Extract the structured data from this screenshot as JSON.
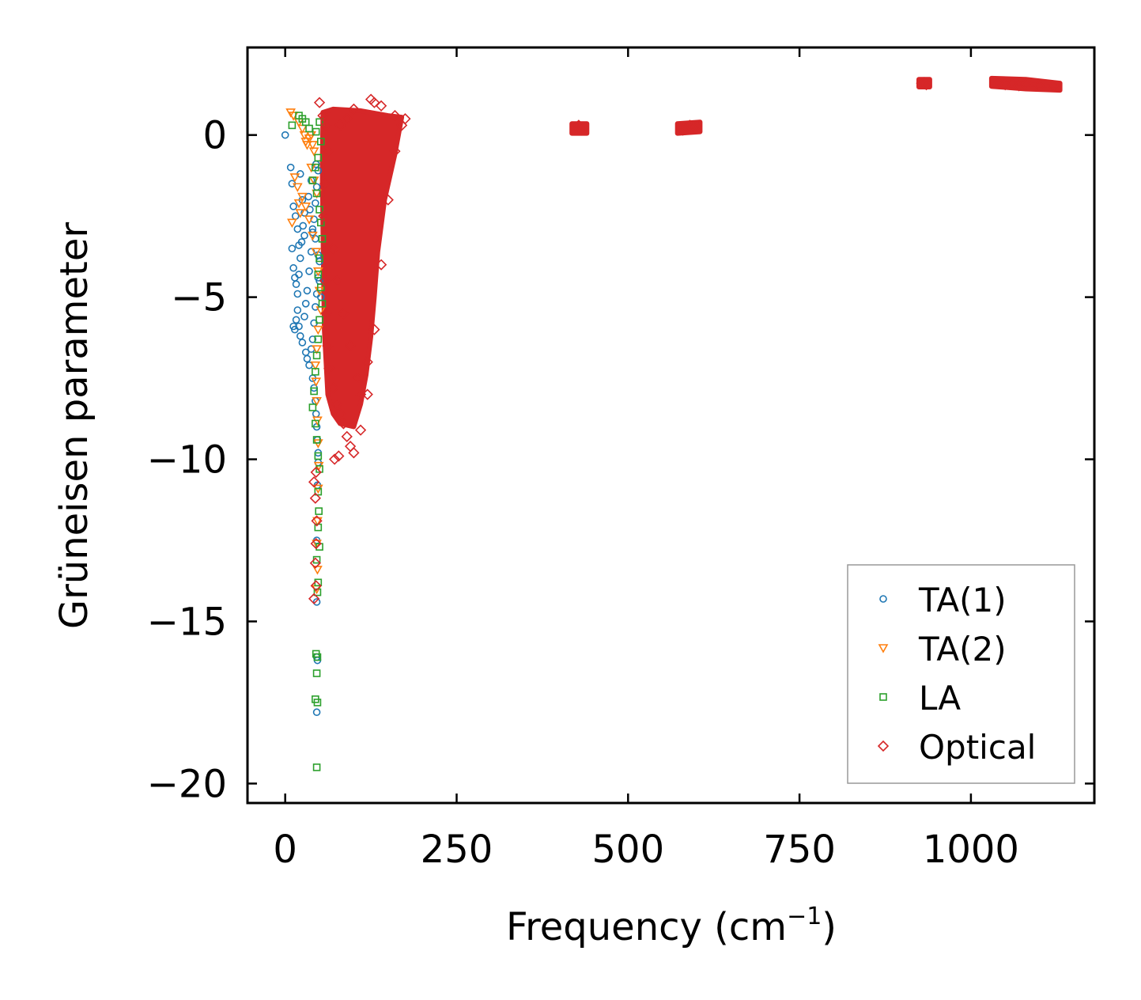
{
  "chart_data": {
    "type": "scatter",
    "title": "",
    "xlabel": "Frequency (cm",
    "xlabel_sup": "−1",
    "xlabel_close": ")",
    "ylabel": "Grüneisen parameter",
    "xlim": [
      -55,
      1180
    ],
    "ylim": [
      -20.6,
      2.7
    ],
    "xticks": [
      0,
      250,
      500,
      750,
      1000
    ],
    "xtick_labels": [
      "0",
      "250",
      "500",
      "750",
      "1000"
    ],
    "yticks": [
      0,
      -5,
      -10,
      -15,
      -20
    ],
    "ytick_labels": [
      "0",
      "−5",
      "−10",
      "−15",
      "−20"
    ],
    "grid": false,
    "legend_position": "lower-right",
    "series": [
      {
        "name": "TA(1)",
        "marker": "circle",
        "color": "#1f77b4",
        "points": [
          [
            0,
            0
          ],
          [
            8,
            -1
          ],
          [
            10,
            -1.5
          ],
          [
            12,
            -2.2
          ],
          [
            15,
            -2.5
          ],
          [
            18,
            -2.9
          ],
          [
            20,
            -3.4
          ],
          [
            22,
            -1.2
          ],
          [
            25,
            -2
          ],
          [
            28,
            -3.1
          ],
          [
            10,
            -3.5
          ],
          [
            12,
            -4.1
          ],
          [
            14,
            -4.4
          ],
          [
            16,
            -4.6
          ],
          [
            18,
            -5.4
          ],
          [
            20,
            -5.9
          ],
          [
            22,
            -6.2
          ],
          [
            25,
            -6.4
          ],
          [
            28,
            -5.6
          ],
          [
            30,
            -5.2
          ],
          [
            32,
            -4.8
          ],
          [
            35,
            -4.2
          ],
          [
            38,
            -3.6
          ],
          [
            40,
            -3
          ],
          [
            42,
            -2.6
          ],
          [
            44,
            -2.1
          ],
          [
            46,
            -1.6
          ],
          [
            48,
            -1.1
          ],
          [
            45,
            -0.9
          ],
          [
            38,
            -1.4
          ],
          [
            30,
            -6.7
          ],
          [
            32,
            -6.9
          ],
          [
            35,
            -7.1
          ],
          [
            38,
            -6.6
          ],
          [
            40,
            -6.3
          ],
          [
            42,
            -5.8
          ],
          [
            44,
            -5.3
          ],
          [
            46,
            -4.9
          ],
          [
            48,
            -4.4
          ],
          [
            50,
            -3.9
          ],
          [
            40,
            -7.5
          ],
          [
            42,
            -7.8
          ],
          [
            44,
            -8.2
          ],
          [
            45,
            -8.6
          ],
          [
            46,
            -9
          ],
          [
            47,
            -9.4
          ],
          [
            48,
            -9.8
          ],
          [
            48,
            -10.1
          ],
          [
            47,
            -10.8
          ],
          [
            46,
            -12.5
          ],
          [
            46,
            -14.4
          ],
          [
            46,
            -16.1
          ],
          [
            47,
            -16.2
          ],
          [
            46,
            -17.8
          ],
          [
            12,
            -5.9
          ],
          [
            14,
            -6
          ],
          [
            16,
            -5.7
          ],
          [
            18,
            -4.9
          ],
          [
            20,
            -4.3
          ],
          [
            22,
            -3.8
          ],
          [
            24,
            -3.3
          ],
          [
            26,
            -2.8
          ],
          [
            28,
            -2.4
          ],
          [
            34,
            -1.9
          ],
          [
            36,
            -2.3
          ],
          [
            40,
            -2.9
          ],
          [
            44,
            -3.2
          ],
          [
            48,
            -3.7
          ],
          [
            50,
            -4.5
          ],
          [
            52,
            -5
          ]
        ]
      },
      {
        "name": "TA(2)",
        "marker": "triangle-down",
        "color": "#ff7f0e",
        "points": [
          [
            8,
            0.7
          ],
          [
            12,
            0.6
          ],
          [
            20,
            0.4
          ],
          [
            25,
            0.2
          ],
          [
            28,
            0
          ],
          [
            30,
            -0.2
          ],
          [
            32,
            -0.3
          ],
          [
            35,
            -0.1
          ],
          [
            38,
            0
          ],
          [
            40,
            -0.3
          ],
          [
            42,
            -0.5
          ],
          [
            14,
            -1.3
          ],
          [
            18,
            -1.6
          ],
          [
            20,
            -2.1
          ],
          [
            22,
            -2.4
          ],
          [
            10,
            -2.7
          ],
          [
            25,
            -1.9
          ],
          [
            30,
            -2.2
          ],
          [
            35,
            -2.6
          ],
          [
            40,
            -3.1
          ],
          [
            45,
            -3.6
          ],
          [
            48,
            -4.2
          ],
          [
            50,
            -4.8
          ],
          [
            52,
            -5.4
          ],
          [
            48,
            -6
          ],
          [
            46,
            -6.6
          ],
          [
            44,
            -7.1
          ],
          [
            45,
            -7.6
          ],
          [
            46,
            -8.2
          ],
          [
            47,
            -8.8
          ],
          [
            48,
            -9.5
          ],
          [
            49,
            -10.2
          ],
          [
            48,
            -10.9
          ],
          [
            47,
            -11.9
          ],
          [
            46,
            -12.6
          ],
          [
            47,
            -13.4
          ],
          [
            46,
            -14
          ],
          [
            38,
            -1
          ],
          [
            42,
            -1.4
          ],
          [
            46,
            -1.8
          ]
        ]
      },
      {
        "name": "LA",
        "marker": "square",
        "color": "#2ca02c",
        "points": [
          [
            10,
            0.3
          ],
          [
            20,
            0.6
          ],
          [
            25,
            0.5
          ],
          [
            30,
            0.4
          ],
          [
            35,
            0.2
          ],
          [
            45,
            0.1
          ],
          [
            50,
            0.4
          ],
          [
            52,
            -0.2
          ],
          [
            48,
            -0.7
          ],
          [
            44,
            -1
          ],
          [
            40,
            -1.4
          ],
          [
            46,
            -1.8
          ],
          [
            50,
            -2.3
          ],
          [
            52,
            -2.7
          ],
          [
            54,
            -3.2
          ],
          [
            50,
            -3.8
          ],
          [
            48,
            -4.3
          ],
          [
            52,
            -4.7
          ],
          [
            54,
            -5.2
          ],
          [
            50,
            -5.7
          ],
          [
            48,
            -6.3
          ],
          [
            46,
            -6.8
          ],
          [
            44,
            -7.3
          ],
          [
            42,
            -7.9
          ],
          [
            40,
            -8.4
          ],
          [
            44,
            -8.9
          ],
          [
            46,
            -9.4
          ],
          [
            48,
            -9.9
          ],
          [
            50,
            -10.3
          ],
          [
            48,
            -11
          ],
          [
            49,
            -11.6
          ],
          [
            48,
            -12.1
          ],
          [
            50,
            -12.7
          ],
          [
            46,
            -13.1
          ],
          [
            48,
            -13.8
          ],
          [
            47,
            -14.1
          ],
          [
            45,
            -16
          ],
          [
            47,
            -16.1
          ],
          [
            46,
            -16.6
          ],
          [
            44,
            -17.4
          ],
          [
            47,
            -17.5
          ],
          [
            46,
            -19.5
          ]
        ]
      },
      {
        "name": "Optical",
        "marker": "diamond",
        "color": "#d62728",
        "points": [
          [
            50,
            1
          ],
          [
            55,
            0.6
          ],
          [
            60,
            0.3
          ],
          [
            62,
            -0.5
          ],
          [
            58,
            -1.5
          ],
          [
            56,
            -2.5
          ],
          [
            60,
            -3.5
          ],
          [
            58,
            -4.5
          ],
          [
            60,
            -5.5
          ],
          [
            62,
            -6.5
          ],
          [
            64,
            -7.2
          ],
          [
            70,
            -7.8
          ],
          [
            75,
            -8.3
          ],
          [
            80,
            -8.6
          ],
          [
            85,
            -8.9
          ],
          [
            90,
            -9.3
          ],
          [
            95,
            -9.6
          ],
          [
            100,
            -9.8
          ],
          [
            72,
            -10
          ],
          [
            78,
            -9.9
          ],
          [
            45,
            -10.4
          ],
          [
            42,
            -10.7
          ],
          [
            44,
            -11.2
          ],
          [
            46,
            -11.9
          ],
          [
            45,
            -12.6
          ],
          [
            44,
            -13.2
          ],
          [
            45,
            -13.9
          ],
          [
            42,
            -14.3
          ],
          [
            110,
            -9.1
          ],
          [
            120,
            -8
          ],
          [
            130,
            -6
          ],
          [
            140,
            -4
          ],
          [
            150,
            -2
          ],
          [
            160,
            -0.5
          ],
          [
            170,
            0.3
          ],
          [
            175,
            0.5
          ],
          [
            160,
            0.6
          ],
          [
            140,
            0.9
          ],
          [
            130,
            1
          ],
          [
            125,
            1.1
          ],
          [
            100,
            0.8
          ],
          [
            90,
            0.5
          ],
          [
            80,
            0.3
          ],
          [
            120,
            -7
          ],
          [
            110,
            -8
          ],
          [
            105,
            -7.5
          ],
          [
            95,
            -6.5
          ],
          [
            85,
            -5.5
          ],
          [
            75,
            -4.5
          ],
          [
            70,
            -3.5
          ],
          [
            425,
            0.2
          ],
          [
            428,
            0.3
          ],
          [
            432,
            0.15
          ],
          [
            430,
            0.25
          ],
          [
            435,
            0.2
          ],
          [
            585,
            0.2
          ],
          [
            590,
            0.3
          ],
          [
            595,
            0.25
          ],
          [
            580,
            0.15
          ],
          [
            600,
            0.28
          ],
          [
            928,
            1.6
          ],
          [
            932,
            1.62
          ],
          [
            935,
            1.55
          ],
          [
            1040,
            1.6
          ],
          [
            1060,
            1.58
          ],
          [
            1080,
            1.55
          ],
          [
            1100,
            1.52
          ],
          [
            1120,
            1.5
          ],
          [
            1050,
            1.55
          ],
          [
            1070,
            1.52
          ]
        ]
      }
    ],
    "dense_regions": [
      {
        "series": "Optical",
        "outline": [
          [
            55,
            0.7
          ],
          [
            70,
            0.8
          ],
          [
            110,
            0.75
          ],
          [
            150,
            0.6
          ],
          [
            170,
            0.55
          ],
          [
            160,
            -0.6
          ],
          [
            145,
            -2
          ],
          [
            135,
            -3.6
          ],
          [
            130,
            -5
          ],
          [
            125,
            -6.2
          ],
          [
            118,
            -7.4
          ],
          [
            110,
            -8.3
          ],
          [
            100,
            -9
          ],
          [
            80,
            -8.9
          ],
          [
            70,
            -8.6
          ],
          [
            62,
            -8
          ],
          [
            57,
            -6
          ],
          [
            55,
            -3
          ],
          [
            54,
            -1
          ]
        ]
      },
      {
        "series": "Optical",
        "outline": [
          [
            418,
            0.35
          ],
          [
            440,
            0.35
          ],
          [
            440,
            0.05
          ],
          [
            418,
            0.05
          ]
        ]
      },
      {
        "series": "Optical",
        "outline": [
          [
            572,
            0.35
          ],
          [
            605,
            0.4
          ],
          [
            605,
            0.1
          ],
          [
            572,
            0.05
          ]
        ]
      },
      {
        "series": "Optical",
        "outline": [
          [
            924,
            1.72
          ],
          [
            940,
            1.72
          ],
          [
            940,
            1.48
          ],
          [
            924,
            1.48
          ]
        ]
      },
      {
        "series": "Optical",
        "outline": [
          [
            1030,
            1.75
          ],
          [
            1080,
            1.72
          ],
          [
            1130,
            1.6
          ],
          [
            1130,
            1.38
          ],
          [
            1080,
            1.42
          ],
          [
            1030,
            1.5
          ]
        ]
      }
    ]
  }
}
